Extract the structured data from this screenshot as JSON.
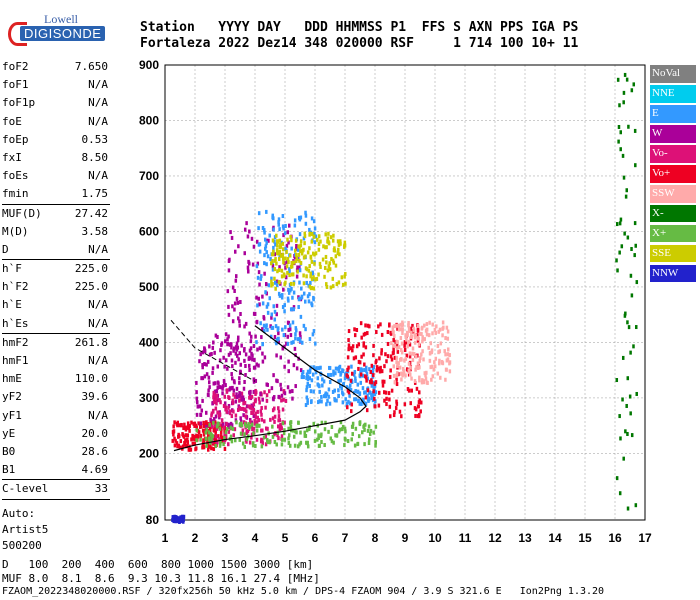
{
  "logo": {
    "line1": "Lowell",
    "line2": "DIGISONDE"
  },
  "header": {
    "labels": "Station   YYYY DAY   DDD HHMMSS P1  FFS S AXN PPS IGA PS",
    "values": "Fortaleza 2022 Dez14 348 020000 RSF     1 714 100 10+ 11"
  },
  "params": [
    {
      "label": "foF2",
      "value": "7.650"
    },
    {
      "label": "foF1",
      "value": "N/A"
    },
    {
      "label": "foF1p",
      "value": "N/A"
    },
    {
      "label": "foE",
      "value": "N/A"
    },
    {
      "label": "foEp",
      "value": "0.53"
    },
    {
      "label": "fxI",
      "value": "8.50"
    },
    {
      "label": "foEs",
      "value": "N/A"
    },
    {
      "label": "fmin",
      "value": "1.75"
    },
    {
      "sep": true
    },
    {
      "label": "MUF(D)",
      "value": "27.42"
    },
    {
      "label": "M(D)",
      "value": "3.58"
    },
    {
      "label": "D",
      "value": "N/A"
    },
    {
      "sep": true
    },
    {
      "label": "h`F",
      "value": "225.0"
    },
    {
      "label": "h`F2",
      "value": "225.0"
    },
    {
      "label": "h`E",
      "value": "N/A"
    },
    {
      "label": "h`Es",
      "value": "N/A"
    },
    {
      "sep": true
    },
    {
      "label": "hmF2",
      "value": "261.8"
    },
    {
      "label": "hmF1",
      "value": "N/A"
    },
    {
      "label": "hmE",
      "value": "110.0"
    },
    {
      "label": "yF2",
      "value": "39.6"
    },
    {
      "label": "yF1",
      "value": "N/A"
    },
    {
      "label": "yE",
      "value": "20.0"
    },
    {
      "label": "B0",
      "value": "28.6"
    },
    {
      "label": "B1",
      "value": "4.69"
    },
    {
      "sep": true
    },
    {
      "label": "C-level",
      "value": "33"
    },
    {
      "sep": true
    }
  ],
  "autoscaling": {
    "line1": "Auto:",
    "line2": "Artist5",
    "line3": "500200"
  },
  "legend": [
    {
      "label": "NoVal",
      "color": "#808080"
    },
    {
      "label": "NNE",
      "color": "#00ccee"
    },
    {
      "label": "E",
      "color": "#3399ff"
    },
    {
      "label": "W",
      "color": "#aa0099"
    },
    {
      "label": "Vo-",
      "color": "#dd1177"
    },
    {
      "label": "Vo+",
      "color": "#ee0022"
    },
    {
      "label": "SSW",
      "color": "#ffaaaa"
    },
    {
      "label": "X-",
      "color": "#007700"
    },
    {
      "label": "X+",
      "color": "#66bb44"
    },
    {
      "label": "SSE",
      "color": "#cccc00"
    },
    {
      "label": "NNW",
      "color": "#2222cc"
    }
  ],
  "chart_data": {
    "type": "scatter",
    "title": "",
    "xlabel": "",
    "ylabel": "",
    "xlim": [
      1,
      17
    ],
    "ylim": [
      80,
      900
    ],
    "x_ticks": [
      1,
      2,
      3,
      4,
      5,
      6,
      7,
      8,
      9,
      10,
      11,
      12,
      13,
      14,
      15,
      16,
      17
    ],
    "y_ticks": [
      80,
      200,
      300,
      400,
      500,
      600,
      700,
      800,
      900
    ],
    "grid": true,
    "legend_placement": "right",
    "trace_clusters": [
      {
        "x_range": [
          1.2,
          3.0
        ],
        "y_range": [
          210,
          260
        ],
        "color": "#ee0022"
      },
      {
        "x_range": [
          2.0,
          4.0
        ],
        "y_range": [
          250,
          420
        ],
        "color": "#aa0099"
      },
      {
        "x_range": [
          2.5,
          5.0
        ],
        "y_range": [
          220,
          320
        ],
        "color": "#dd1177"
      },
      {
        "x_range": [
          3.0,
          5.5
        ],
        "y_range": [
          300,
          620
        ],
        "color": "#aa0099"
      },
      {
        "x_range": [
          4.0,
          6.0
        ],
        "y_range": [
          400,
          640
        ],
        "color": "#3399ff"
      },
      {
        "x_range": [
          4.5,
          7.0
        ],
        "y_range": [
          500,
          600
        ],
        "color": "#cccc00"
      },
      {
        "x_range": [
          5.5,
          8.0
        ],
        "y_range": [
          290,
          360
        ],
        "color": "#3399ff"
      },
      {
        "x_range": [
          7.0,
          9.5
        ],
        "y_range": [
          270,
          440
        ],
        "color": "#ee0022"
      },
      {
        "x_range": [
          8.5,
          10.5
        ],
        "y_range": [
          330,
          440
        ],
        "color": "#ffaaaa"
      },
      {
        "x_range": [
          2.0,
          8.0
        ],
        "y_range": [
          215,
          260
        ],
        "color": "#66bb44"
      },
      {
        "x_range": [
          16.0,
          16.7
        ],
        "y_range": [
          80,
          900
        ],
        "color": "#007700"
      },
      {
        "x_range": [
          1.2,
          1.6
        ],
        "y_range": [
          80,
          90
        ],
        "color": "#2222cc"
      }
    ],
    "profile_curve": {
      "x": [
        1.3,
        2.0,
        3.0,
        4.0,
        5.0,
        6.0,
        7.0,
        7.5,
        7.7,
        7.5,
        7.0,
        6.0,
        5.0,
        4.0
      ],
      "y": [
        205,
        215,
        225,
        232,
        240,
        250,
        260,
        275,
        285,
        300,
        320,
        350,
        390,
        430
      ]
    },
    "profile_dashed": {
      "x": [
        1.2,
        2.0,
        3.0,
        4.0
      ],
      "y": [
        440,
        390,
        360,
        330
      ]
    }
  },
  "footer": {
    "d_label": "D",
    "d_values": "100  200  400  600  800 1000 1500 3000 [km]",
    "muf_label": "MUF",
    "muf_values": "8.0  8.1  8.6  9.3 10.3 11.8 16.1 27.4 [MHz]",
    "info": "FZAOM_2022348020000.RSF / 320fx256h 50 kHz 5.0 km / DPS-4 FZAOM 904 / 3.9 S 321.6 E   Ion2Png 1.3.20"
  }
}
